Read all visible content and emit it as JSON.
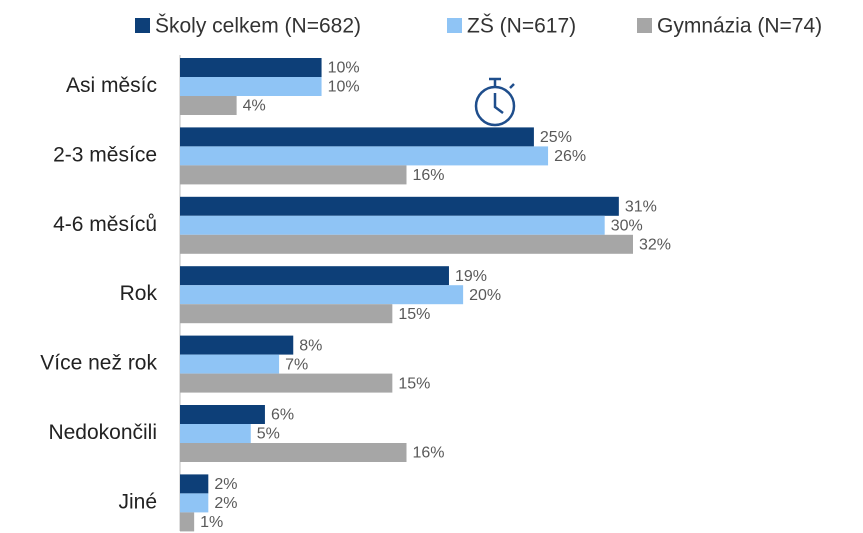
{
  "chart_data": {
    "type": "bar",
    "orientation": "horizontal",
    "categories": [
      "Asi měsíc",
      "2-3 měsíce",
      "4-6 měsíců",
      "Rok",
      "Více než rok",
      "Nedokončili",
      "Jiné"
    ],
    "series": [
      {
        "name": "Školy celkem (N=682)",
        "color": "#0d3f78",
        "values": [
          10,
          25,
          31,
          19,
          8,
          6,
          2
        ],
        "value_labels": [
          "10%",
          "25%",
          "31%",
          "19%",
          "8%",
          "6%",
          "2%"
        ]
      },
      {
        "name": "ZŠ (N=617)",
        "color": "#8fc4f5",
        "values": [
          10,
          26,
          30,
          20,
          7,
          5,
          2
        ],
        "value_labels": [
          "10%",
          "26%",
          "30%",
          "20%",
          "7%",
          "5%",
          "2%"
        ]
      },
      {
        "name": "Gymnázia (N=74)",
        "color": "#a6a6a6",
        "values": [
          4,
          16,
          32,
          15,
          15,
          16,
          1
        ],
        "value_labels": [
          "4%",
          "16%",
          "32%",
          "15%",
          "15%",
          "16%",
          "1%"
        ]
      }
    ],
    "legend": "top"
  }
}
